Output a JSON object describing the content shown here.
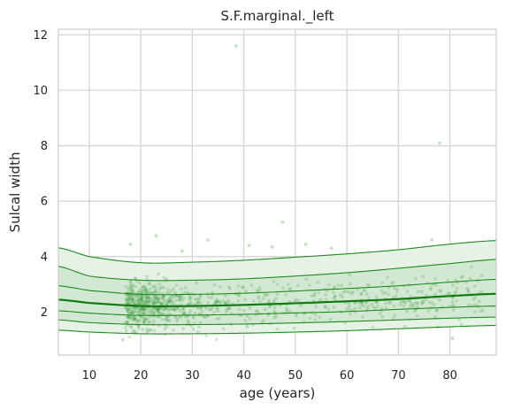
{
  "chart_data": {
    "type": "scatter",
    "title": "S.F.marginal._left",
    "xlabel": "age (years)",
    "ylabel": "Sulcal width",
    "xlim": [
      4,
      89
    ],
    "ylim": [
      0.45,
      12.2
    ],
    "xticks": [
      10,
      20,
      30,
      40,
      50,
      60,
      70,
      80
    ],
    "yticks": [
      2,
      4,
      6,
      8,
      10,
      12
    ],
    "grid": true,
    "colors": {
      "line": "#1f8a1f",
      "median": "#127a12",
      "band_outer": "#e6f2e6",
      "band_inner": "#cfe6cf",
      "points": "#3a9a3a"
    },
    "percentile_curves": {
      "x": [
        4,
        10,
        20,
        30,
        40,
        50,
        60,
        70,
        80,
        89
      ],
      "series": [
        {
          "values": [
            1.35,
            1.28,
            1.22,
            1.22,
            1.24,
            1.28,
            1.33,
            1.4,
            1.47,
            1.52
          ]
        },
        {
          "values": [
            1.72,
            1.62,
            1.55,
            1.55,
            1.57,
            1.61,
            1.66,
            1.72,
            1.78,
            1.82
          ]
        },
        {
          "values": [
            2.05,
            1.96,
            1.88,
            1.89,
            1.92,
            1.97,
            2.02,
            2.1,
            2.17,
            2.22
          ]
        },
        {
          "values": [
            2.45,
            2.33,
            2.22,
            2.22,
            2.26,
            2.32,
            2.39,
            2.47,
            2.58,
            2.66
          ]
        },
        {
          "values": [
            2.95,
            2.78,
            2.64,
            2.64,
            2.68,
            2.76,
            2.85,
            2.95,
            3.08,
            3.18
          ]
        },
        {
          "values": [
            3.65,
            3.3,
            3.15,
            3.15,
            3.2,
            3.3,
            3.42,
            3.58,
            3.75,
            3.9
          ]
        },
        {
          "values": [
            4.32,
            4.0,
            3.78,
            3.8,
            3.87,
            3.98,
            4.1,
            4.25,
            4.45,
            4.58
          ]
        }
      ]
    },
    "scatter_outliers": [
      {
        "x": 38.5,
        "y": 11.6
      },
      {
        "x": 78.0,
        "y": 8.1
      },
      {
        "x": 47.5,
        "y": 5.25
      },
      {
        "x": 23.0,
        "y": 4.75
      },
      {
        "x": 33.0,
        "y": 4.6
      },
      {
        "x": 76.5,
        "y": 4.6
      },
      {
        "x": 18.0,
        "y": 4.45
      },
      {
        "x": 41.0,
        "y": 4.4
      },
      {
        "x": 52.0,
        "y": 4.45
      },
      {
        "x": 57.0,
        "y": 4.3
      },
      {
        "x": 45.5,
        "y": 4.35
      },
      {
        "x": 28.0,
        "y": 4.2
      },
      {
        "x": 80.5,
        "y": 1.05
      },
      {
        "x": 16.5,
        "y": 1.0
      }
    ],
    "scatter_cloud": {
      "x_range": [
        17,
        87
      ],
      "y_center": 2.3,
      "count": 900
    }
  }
}
